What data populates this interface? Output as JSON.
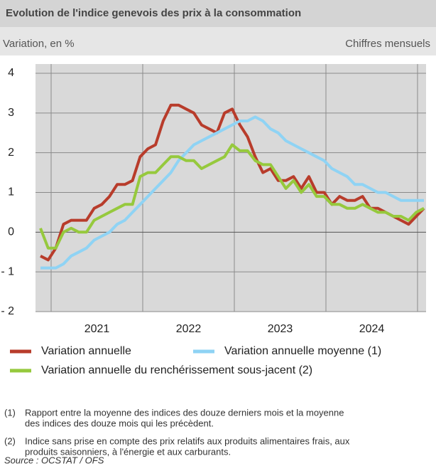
{
  "chart_data": {
    "type": "line",
    "title": "Evolution de l'indice genevois des prix à la consommation",
    "subtitle": "Variation, en %",
    "subtitle_right": "Chiffres mensuels",
    "categories": [
      null,
      null,
      null,
      null,
      null,
      null,
      null,
      null,
      null,
      null,
      null,
      null,
      null,
      null,
      null,
      null,
      null,
      null,
      null,
      null,
      null,
      null,
      null,
      null,
      null,
      null,
      null,
      null,
      null,
      null,
      null,
      null,
      null,
      null,
      null,
      null,
      null,
      null,
      null,
      null,
      null,
      null,
      null,
      null,
      null,
      null,
      null,
      null,
      null,
      null,
      null
    ],
    "x_groups": [
      "2021",
      "2022",
      "2023",
      "2024"
    ],
    "ylim": [
      -2,
      4
    ],
    "yticks": [
      {
        "value": -2,
        "label": "- 2"
      },
      {
        "value": -1,
        "label": "- 1"
      },
      0,
      1,
      2,
      3,
      4
    ],
    "grid": true,
    "series": [
      {
        "name": "Variation annuelle",
        "color": "#b83c2b",
        "values": [
          -0.6,
          -0.7,
          -0.4,
          0.2,
          0.3,
          0.3,
          0.3,
          0.6,
          0.7,
          0.9,
          1.2,
          1.2,
          1.3,
          1.9,
          2.1,
          2.2,
          2.8,
          3.2,
          3.2,
          3.1,
          3.0,
          2.7,
          2.6,
          2.5,
          3.0,
          3.1,
          2.7,
          2.4,
          1.9,
          1.5,
          1.6,
          1.3,
          1.3,
          1.4,
          1.1,
          1.4,
          1.0,
          1.0,
          0.7,
          0.9,
          0.8,
          0.8,
          0.9,
          0.6,
          0.6,
          0.5,
          0.4,
          0.3,
          0.2,
          0.4,
          0.6
        ]
      },
      {
        "name": "Variation annuelle moyenne (1)",
        "color": "#8fd3f4",
        "values": [
          -0.9,
          -0.9,
          -0.9,
          -0.8,
          -0.6,
          -0.5,
          -0.4,
          -0.2,
          -0.1,
          0.0,
          0.2,
          0.3,
          0.5,
          0.7,
          0.9,
          1.1,
          1.3,
          1.5,
          1.8,
          2.0,
          2.2,
          2.3,
          2.4,
          2.5,
          2.6,
          2.7,
          2.8,
          2.8,
          2.9,
          2.8,
          2.6,
          2.5,
          2.3,
          2.2,
          2.1,
          2.0,
          1.9,
          1.8,
          1.6,
          1.5,
          1.4,
          1.2,
          1.2,
          1.1,
          1.0,
          1.0,
          0.9,
          0.8,
          0.8,
          0.8,
          0.8
        ]
      },
      {
        "name": "Variation annuelle du renchérissement sous-jacent (2)",
        "color": "#96c93d",
        "values": [
          0.1,
          -0.4,
          -0.4,
          0.0,
          0.1,
          0.0,
          0.0,
          0.3,
          0.4,
          0.5,
          0.6,
          0.7,
          0.7,
          1.4,
          1.5,
          1.5,
          1.7,
          1.9,
          1.9,
          1.8,
          1.8,
          1.6,
          1.7,
          1.8,
          1.9,
          2.2,
          2.05,
          2.05,
          1.8,
          1.7,
          1.7,
          1.4,
          1.1,
          1.3,
          1.0,
          1.2,
          0.9,
          0.9,
          0.7,
          0.7,
          0.6,
          0.6,
          0.7,
          0.6,
          0.5,
          0.5,
          0.4,
          0.4,
          0.3,
          0.5,
          0.6
        ]
      }
    ],
    "notes": [
      {
        "marker": "(1)",
        "lines": [
          "Rapport entre la moyenne des indices des douze derniers mois et la moyenne",
          "des indices des douze mois qui les précèdent."
        ]
      },
      {
        "marker": "(2)",
        "lines": [
          "Indice sans prise en compte des prix relatifs aux produits alimentaires frais, aux",
          "produits saisonniers, à l'énergie et aux carburants."
        ]
      }
    ],
    "source": "Source : OCSTAT / OFS"
  }
}
